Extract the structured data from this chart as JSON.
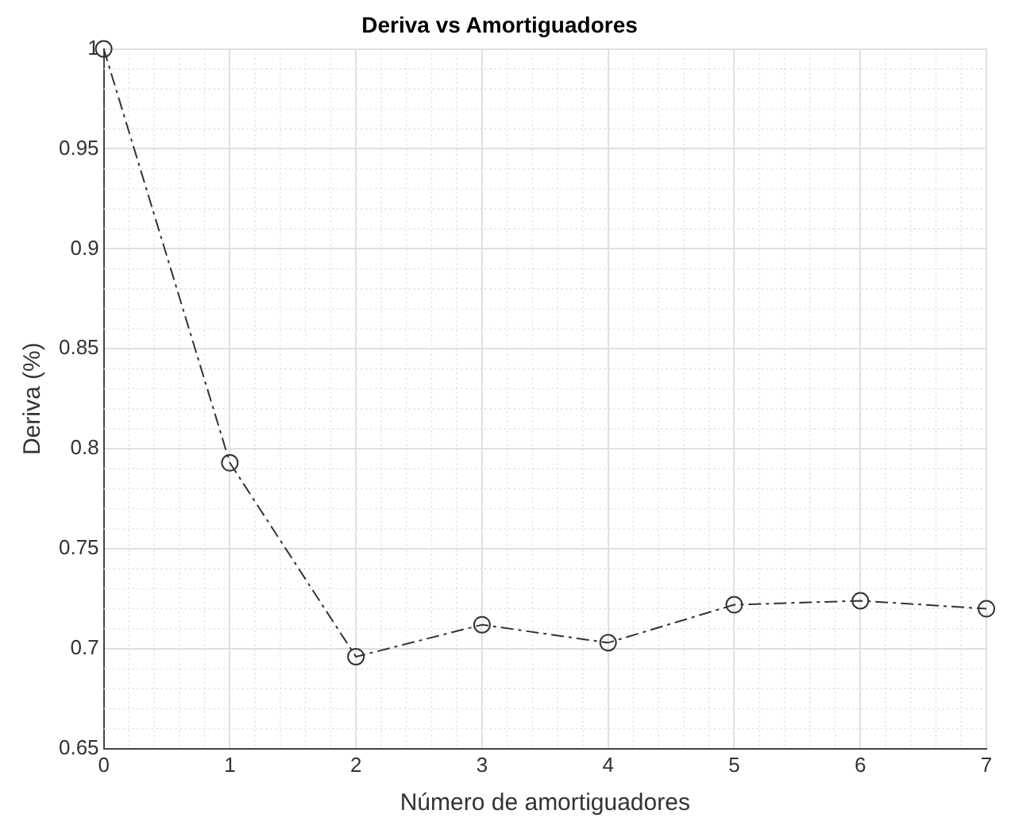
{
  "chart_data": {
    "type": "line",
    "title": "Deriva vs Amortiguadores",
    "xlabel": "Número de amortiguadores",
    "ylabel": "Deriva (%)",
    "x": [
      0,
      1,
      2,
      3,
      4,
      5,
      6,
      7
    ],
    "series": [
      {
        "color": "#333333",
        "values": [
          1,
          0.793,
          0.696,
          0.712,
          0.703,
          0.722,
          0.724,
          0.72
        ]
      }
    ],
    "xlim": [
      0,
      7
    ],
    "xticks": [
      0,
      1,
      2,
      3,
      4,
      5,
      6,
      7
    ],
    "ylim": [
      0.65,
      1
    ],
    "yticks": [
      0.65,
      0.7,
      0.75,
      0.8,
      0.85,
      0.9,
      0.95,
      1
    ],
    "grid": true,
    "legend": false,
    "marker": "circle",
    "line_style": "dashed"
  }
}
